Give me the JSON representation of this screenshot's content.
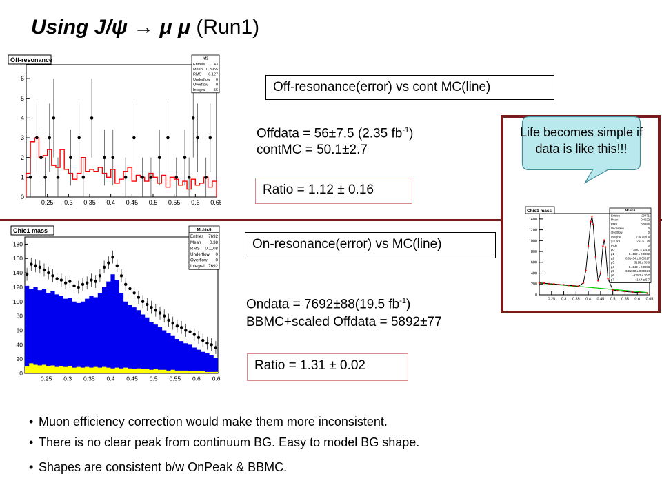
{
  "title": {
    "italic": "Using J/ψ → μ μ",
    "normal": "(Run1)"
  },
  "off_box": "Off-resonance(error) vs cont MC(line)",
  "off_numbers": {
    "offdata_main": "Offdata = 56±7.5 (2.35 fb",
    "offdata_sup": "-1",
    "offdata_end": ")",
    "contmc": "contMC = 50.1±2.7"
  },
  "off_ratio": "Ratio = 1.12 ± 0.16",
  "on_box": "On-resonance(error) vs MC(line)",
  "on_numbers": {
    "ondata_main": "Ondata = 7692±88(19.5 fb",
    "ondata_sup": "-1",
    "ondata_end": ")",
    "bbmc": "BBMC+scaled Offdata = 5892±77"
  },
  "on_ratio": "Ratio = 1.31 ± 0.02",
  "callout": "Life becomes simple if data is like this!!!",
  "bullets": [
    "Muon efficiency correction would make them more inconsistent.",
    "There is no clear peak from continuum BG. Easy to model BG shape.",
    "Shapes are consistent b/w OnPeak & BBMC."
  ],
  "colors": {
    "separator": "#7a1a1a",
    "mc_line": "#ff0000",
    "bb_fill": "#0000ee",
    "off_fill": "#ffff00",
    "bg_line": "#00cc00"
  },
  "chart_data": [
    {
      "type": "line",
      "title": "Off-resonance",
      "stats": {
        "name": "hf2",
        "rows": [
          [
            "Entries",
            "43"
          ],
          [
            "Mean",
            "0.3955"
          ],
          [
            "RMS",
            "0.127"
          ],
          [
            "Underflow",
            "0"
          ],
          [
            "Overflow",
            "0"
          ],
          [
            "Integral",
            "56"
          ]
        ]
      },
      "xlim": [
        0.2,
        0.65
      ],
      "ylim": [
        0,
        6.7
      ],
      "xticks": [
        "0.25",
        "0.3",
        "0.35",
        "0.4",
        "0.45",
        "0.5",
        "0.55",
        "0.6",
        "0.65"
      ],
      "yticks": [
        "0",
        "1",
        "2",
        "3",
        "4",
        "5",
        "6"
      ],
      "data_points": {
        "x": [
          0.21,
          0.225,
          0.235,
          0.245,
          0.255,
          0.265,
          0.275,
          0.305,
          0.325,
          0.335,
          0.355,
          0.385,
          0.405,
          0.435,
          0.455,
          0.475,
          0.495,
          0.515,
          0.535,
          0.555,
          0.575,
          0.585,
          0.595,
          0.605,
          0.625,
          0.635
        ],
        "y": [
          1,
          3,
          2,
          1,
          3,
          4,
          1,
          2,
          3,
          1,
          4,
          2,
          2,
          1,
          3,
          1,
          1,
          2,
          3,
          1,
          2,
          1,
          4,
          3,
          1,
          3
        ]
      },
      "mc_x": [
        0.2,
        0.21,
        0.22,
        0.23,
        0.24,
        0.25,
        0.26,
        0.27,
        0.28,
        0.29,
        0.3,
        0.31,
        0.32,
        0.33,
        0.34,
        0.35,
        0.36,
        0.37,
        0.38,
        0.39,
        0.4,
        0.41,
        0.42,
        0.43,
        0.44,
        0.45,
        0.46,
        0.47,
        0.48,
        0.49,
        0.5,
        0.51,
        0.52,
        0.53,
        0.54,
        0.55,
        0.56,
        0.57,
        0.58,
        0.59,
        0.6,
        0.61,
        0.62,
        0.63,
        0.64
      ],
      "mc_y": [
        1.2,
        2.8,
        3.0,
        2.0,
        2.1,
        2.4,
        1.6,
        1.5,
        2.4,
        1.4,
        1.2,
        0.9,
        1.2,
        2.0,
        1.3,
        1.4,
        1.3,
        1.5,
        1.2,
        1.0,
        1.4,
        0.7,
        0.9,
        1.3,
        1.5,
        0.8,
        1.1,
        1.0,
        0.8,
        1.2,
        1.0,
        0.7,
        1.1,
        0.5,
        1.0,
        0.9,
        0.6,
        0.8,
        0.4,
        0.9,
        0.6,
        0.7,
        1.0,
        0.5,
        0.8
      ]
    },
    {
      "type": "bar",
      "title": "Chic1 mass",
      "stats": {
        "name": "Mchic9",
        "rows": [
          [
            "Entries",
            "7692"
          ],
          [
            "Mean",
            "0.38"
          ],
          [
            "RMS",
            "0.1108"
          ],
          [
            "Underflow",
            "0"
          ],
          [
            "Overflow",
            "0"
          ],
          [
            "Integral",
            "7692"
          ]
        ]
      },
      "xlim": [
        0.2,
        0.65
      ],
      "ylim": [
        0,
        190
      ],
      "xticks": [
        "0.25",
        "0.3",
        "0.35",
        "0.4",
        "0.45",
        "0.5",
        "0.55",
        "0.6",
        "0.65"
      ],
      "yticks": [
        "0",
        "20",
        "40",
        "60",
        "80",
        "100",
        "120",
        "140",
        "160",
        "180"
      ],
      "x": [
        0.2,
        0.21,
        0.22,
        0.23,
        0.24,
        0.25,
        0.26,
        0.27,
        0.28,
        0.29,
        0.3,
        0.31,
        0.32,
        0.33,
        0.34,
        0.35,
        0.36,
        0.37,
        0.38,
        0.39,
        0.4,
        0.41,
        0.42,
        0.43,
        0.44,
        0.45,
        0.46,
        0.47,
        0.48,
        0.49,
        0.5,
        0.51,
        0.52,
        0.53,
        0.54,
        0.55,
        0.56,
        0.57,
        0.58,
        0.59,
        0.6,
        0.61,
        0.62,
        0.63,
        0.64
      ],
      "series": [
        {
          "name": "",
          "values": [
            122,
            118,
            120,
            116,
            118,
            112,
            115,
            110,
            108,
            104,
            105,
            100,
            98,
            100,
            104,
            108,
            106,
            112,
            120,
            128,
            138,
            130,
            112,
            100,
            95,
            92,
            88,
            82,
            78,
            72,
            68,
            65,
            60,
            56,
            52,
            48,
            45,
            42,
            40,
            36,
            33,
            30,
            28,
            25,
            22
          ]
        },
        {
          "name": "",
          "values": [
            10,
            14,
            12,
            11,
            12,
            10,
            11,
            9,
            10,
            9,
            10,
            8,
            9,
            8,
            9,
            8,
            9,
            8,
            9,
            8,
            7,
            8,
            7,
            8,
            7,
            6,
            7,
            6,
            6,
            5,
            6,
            5,
            5,
            4,
            5,
            4,
            4,
            4,
            3,
            3,
            3,
            3,
            2,
            2,
            2
          ]
        },
        {
          "name": "",
          "values": [
            138,
            152,
            150,
            148,
            144,
            140,
            136,
            132,
            130,
            126,
            128,
            122,
            120,
            124,
            126,
            130,
            128,
            136,
            148,
            154,
            162,
            150,
            136,
            124,
            118,
            112,
            106,
            100,
            96,
            92,
            88,
            84,
            80,
            74,
            70,
            66,
            64,
            60,
            58,
            54,
            50,
            46,
            42,
            40,
            36
          ]
        }
      ]
    },
    {
      "type": "line",
      "title": "Chic1 mass",
      "stats": {
        "name": "Mchic9",
        "rows": [
          [
            "Entries",
            "20471"
          ],
          [
            "Mean",
            "0.4022"
          ],
          [
            "RMS",
            "0.0686"
          ],
          [
            "Underflow",
            "0"
          ],
          [
            "Overflow",
            "0"
          ],
          [
            "Integral",
            "2.047e+04"
          ],
          [
            "χ² / ndf",
            "253.6 / 78"
          ],
          [
            "Prob",
            "0"
          ],
          [
            "p0",
            "7881 ± 114.6"
          ],
          [
            "p1",
            "0.4162 ± 0.0002"
          ],
          [
            "p2",
            "0.01454 ± 0.00027"
          ],
          [
            "p3",
            "3196 ± 78.6"
          ],
          [
            "p4",
            "0.4643 ± 0.0003"
          ],
          [
            "p5",
            "0.01068 ± 0.00024"
          ],
          [
            "p6",
            "-979.2 ± 10.7"
          ],
          [
            "p7",
            "419.4 ± 5.7"
          ]
        ]
      },
      "xlim": [
        0.2,
        0.65
      ],
      "ylim": [
        0,
        1500
      ],
      "xticks": [
        "0.25",
        "0.3",
        "0.35",
        "0.4",
        "0.45",
        "0.5",
        "0.55",
        "0.6",
        "0.65"
      ],
      "yticks": [
        "0",
        "200",
        "400",
        "600",
        "800",
        "1000",
        "1200",
        "1400"
      ],
      "x": [
        0.2,
        0.22,
        0.24,
        0.26,
        0.28,
        0.3,
        0.32,
        0.34,
        0.36,
        0.38,
        0.39,
        0.4,
        0.41,
        0.415,
        0.42,
        0.43,
        0.44,
        0.45,
        0.46,
        0.465,
        0.47,
        0.48,
        0.5,
        0.52,
        0.55,
        0.58,
        0.61,
        0.64
      ],
      "series": [
        {
          "name": "",
          "values": [
            220,
            215,
            205,
            200,
            190,
            185,
            175,
            168,
            160,
            220,
            450,
            900,
            1350,
            1450,
            1300,
            700,
            260,
            400,
            900,
            1010,
            880,
            300,
            90,
            75,
            60,
            50,
            40,
            30
          ]
        },
        {
          "name": "",
          "values": [
            220,
            210,
            202,
            195,
            185,
            178,
            170,
            162,
            155,
            148,
            144,
            140,
            136,
            134,
            132,
            128,
            124,
            120,
            116,
            114,
            112,
            108,
            100,
            92,
            80,
            68,
            56,
            44
          ]
        }
      ]
    }
  ]
}
